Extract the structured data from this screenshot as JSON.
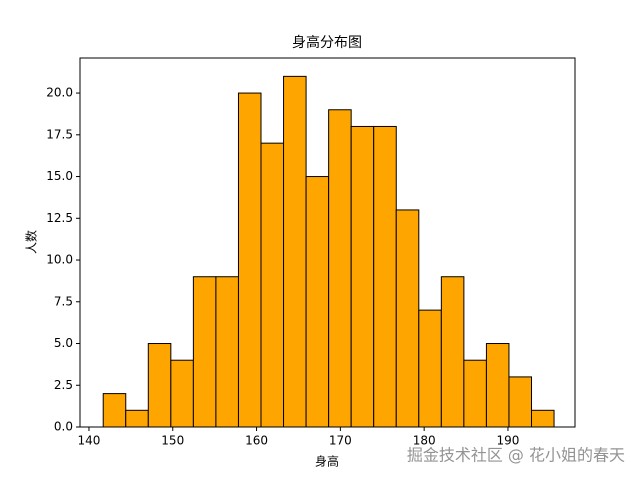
{
  "chart_data": {
    "type": "histogram",
    "title": "身高分布图",
    "x_label": "身高",
    "y_label": "人数",
    "bins": [
      141.7,
      144.39,
      147.08,
      149.77,
      152.46,
      155.15,
      157.84,
      160.53,
      163.22,
      165.91,
      168.6,
      171.29,
      173.98,
      176.67,
      179.36,
      182.05,
      184.74,
      187.43,
      190.12,
      192.81,
      195.5
    ],
    "values": [
      2,
      1,
      5,
      4,
      9,
      9,
      20,
      17,
      21,
      15,
      19,
      18,
      18,
      13,
      7,
      9,
      4,
      5,
      3,
      1
    ],
    "color": "#ffa500",
    "edge_color": "#000000",
    "xlim": [
      138.93,
      198.0
    ],
    "xticks": [
      140,
      150,
      160,
      170,
      180,
      190
    ],
    "ylim": [
      0,
      22.1
    ],
    "yticks": [
      {
        "value": 0,
        "label": "0.0"
      },
      {
        "value": 2.5,
        "label": "2.5"
      },
      {
        "value": 5,
        "label": "5.0"
      },
      {
        "value": 7.5,
        "label": "7.5"
      },
      {
        "value": 10,
        "label": "10.0"
      },
      {
        "value": 12.5,
        "label": "12.5"
      },
      {
        "value": 15,
        "label": "15.0"
      },
      {
        "value": 17.5,
        "label": "17.5"
      },
      {
        "value": 20,
        "label": "20.0"
      }
    ],
    "grid": false,
    "watermark": "掘金技术社区 @ 花小姐的春天"
  }
}
